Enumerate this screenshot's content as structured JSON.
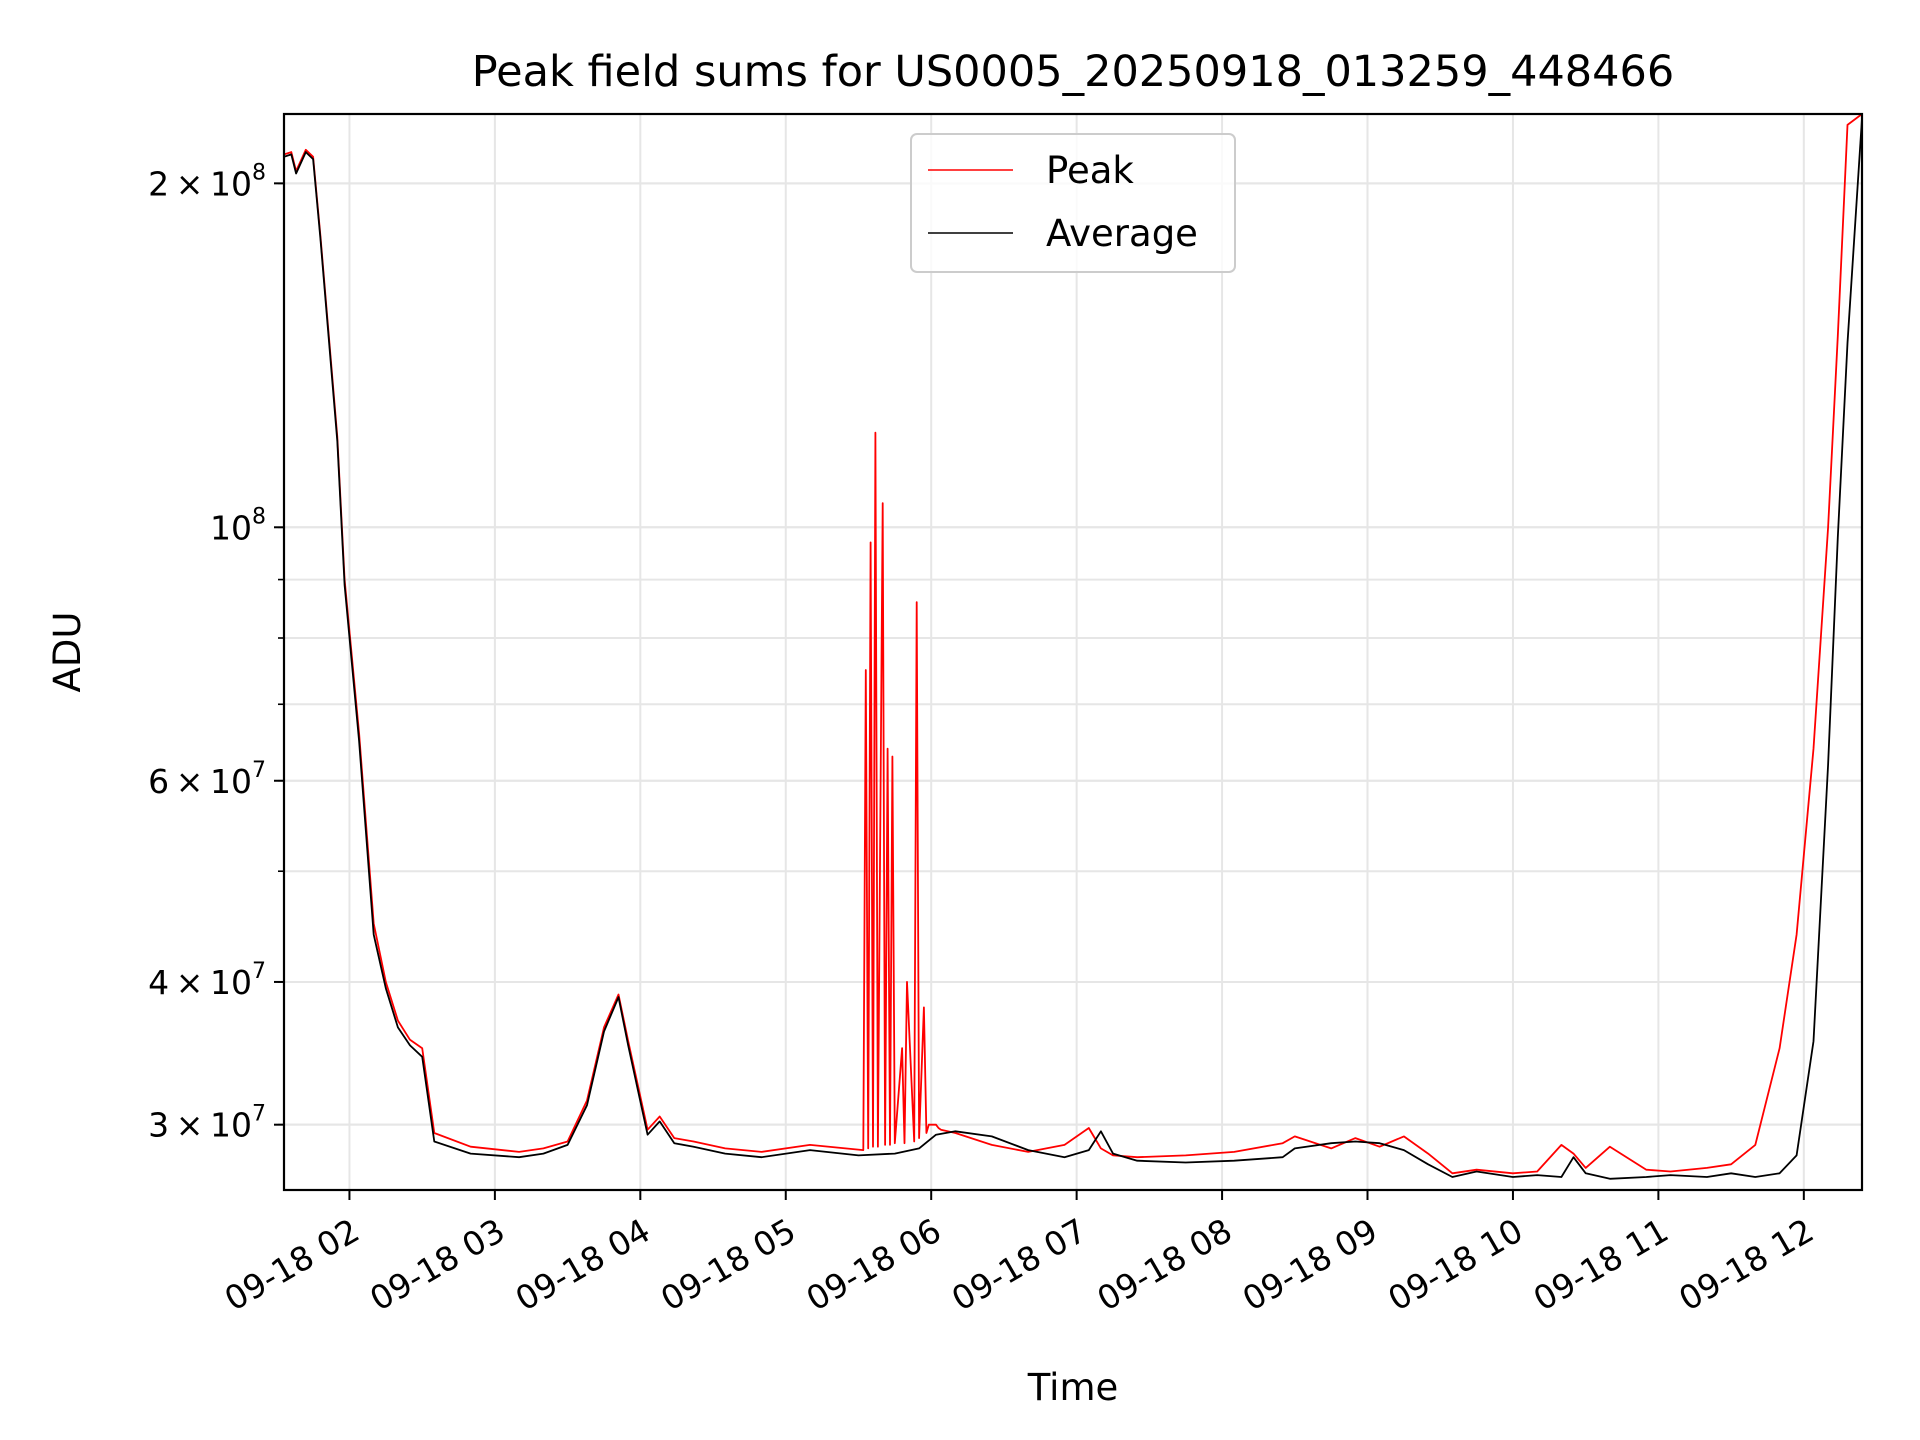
{
  "chart_data": {
    "type": "line",
    "title": "Peak field sums for US0005_20250918_013259_448466",
    "xlabel": "Time",
    "ylabel": "ADU",
    "yscale": "log",
    "ylim": [
      26300000,
      230000000
    ],
    "xlim": [
      "2025-09-18T01:33",
      "2025-09-18T12:24"
    ],
    "grid": true,
    "legend_position": "upper center",
    "x_ticks": [
      "2025-09-18T02:00",
      "2025-09-18T03:00",
      "2025-09-18T04:00",
      "2025-09-18T05:00",
      "2025-09-18T06:00",
      "2025-09-18T07:00",
      "2025-09-18T08:00",
      "2025-09-18T09:00",
      "2025-09-18T10:00",
      "2025-09-18T11:00",
      "2025-09-18T12:00"
    ],
    "x_tick_labels": [
      "09-18 02",
      "09-18 03",
      "09-18 04",
      "09-18 05",
      "09-18 06",
      "09-18 07",
      "09-18 08",
      "09-18 09",
      "09-18 10",
      "09-18 11",
      "09-18 12"
    ],
    "y_ticks": [
      {
        "value": 30000000,
        "mant": "3",
        "exp": "7"
      },
      {
        "value": 40000000,
        "mant": "4",
        "exp": "7"
      },
      {
        "value": 60000000,
        "mant": "6",
        "exp": "7"
      },
      {
        "value": 100000000,
        "mant": "",
        "exp": "8"
      },
      {
        "value": 200000000,
        "mant": "2",
        "exp": "8"
      }
    ],
    "series": [
      {
        "name": "Peak",
        "color": "#ff0000",
        "x": [
          "2025-09-18T01:33",
          "2025-09-18T01:36",
          "2025-09-18T01:38",
          "2025-09-18T01:42",
          "2025-09-18T01:45",
          "2025-09-18T01:48",
          "2025-09-18T01:55",
          "2025-09-18T01:58",
          "2025-09-18T02:04",
          "2025-09-18T02:06",
          "2025-09-18T02:10",
          "2025-09-18T02:15",
          "2025-09-18T02:20",
          "2025-09-18T02:25",
          "2025-09-18T02:30",
          "2025-09-18T02:35",
          "2025-09-18T02:50",
          "2025-09-18T03:10",
          "2025-09-18T03:20",
          "2025-09-18T03:30",
          "2025-09-18T03:38",
          "2025-09-18T03:45",
          "2025-09-18T03:51",
          "2025-09-18T03:55",
          "2025-09-18T04:03",
          "2025-09-18T04:08",
          "2025-09-18T04:14",
          "2025-09-18T04:22",
          "2025-09-18T04:35",
          "2025-09-18T04:50",
          "2025-09-18T05:10",
          "2025-09-18T05:32",
          "2025-09-18T05:33",
          "2025-09-18T05:34",
          "2025-09-18T05:35",
          "2025-09-18T05:36",
          "2025-09-18T05:37",
          "2025-09-18T05:38",
          "2025-09-18T05:40",
          "2025-09-18T05:41",
          "2025-09-18T05:42",
          "2025-09-18T05:43",
          "2025-09-18T05:44",
          "2025-09-18T05:45",
          "2025-09-18T05:48",
          "2025-09-18T05:49",
          "2025-09-18T05:50",
          "2025-09-18T05:53",
          "2025-09-18T05:54",
          "2025-09-18T05:55",
          "2025-09-18T05:57",
          "2025-09-18T05:58",
          "2025-09-18T05:59",
          "2025-09-18T06:02",
          "2025-09-18T06:03",
          "2025-09-18T06:04",
          "2025-09-18T06:10",
          "2025-09-18T06:25",
          "2025-09-18T06:40",
          "2025-09-18T06:55",
          "2025-09-18T07:05",
          "2025-09-18T07:10",
          "2025-09-18T07:15",
          "2025-09-18T07:25",
          "2025-09-18T07:45",
          "2025-09-18T08:05",
          "2025-09-18T08:25",
          "2025-09-18T08:30",
          "2025-09-18T08:45",
          "2025-09-18T08:55",
          "2025-09-18T09:05",
          "2025-09-18T09:15",
          "2025-09-18T09:25",
          "2025-09-18T09:35",
          "2025-09-18T09:45",
          "2025-09-18T10:00",
          "2025-09-18T10:10",
          "2025-09-18T10:20",
          "2025-09-18T10:25",
          "2025-09-18T10:30",
          "2025-09-18T10:40",
          "2025-09-18T10:55",
          "2025-09-18T11:05",
          "2025-09-18T11:20",
          "2025-09-18T11:30",
          "2025-09-18T11:40",
          "2025-09-18T11:50",
          "2025-09-18T11:57",
          "2025-09-18T12:04",
          "2025-09-18T12:10",
          "2025-09-18T12:14",
          "2025-09-18T12:18",
          "2025-09-18T12:24"
        ],
        "y": [
          212000000,
          213000000,
          205000000,
          214000000,
          211000000,
          180000000,
          120000000,
          90000000,
          66000000,
          58000000,
          45000000,
          40000000,
          37000000,
          35600000,
          35000000,
          29500000,
          28700000,
          28400000,
          28600000,
          29000000,
          31500000,
          36500000,
          39000000,
          35500000,
          29700000,
          30500000,
          29200000,
          29000000,
          28600000,
          28400000,
          28800000,
          28500000,
          75000000,
          28600000,
          97000000,
          28700000,
          121000000,
          28700000,
          105000000,
          28800000,
          64000000,
          28800000,
          63000000,
          28900000,
          35000000,
          28900000,
          40000000,
          29000000,
          86000000,
          29200000,
          38000000,
          29500000,
          30000000,
          30000000,
          29800000,
          29700000,
          29500000,
          28800000,
          28400000,
          28800000,
          29800000,
          28600000,
          28200000,
          28100000,
          28200000,
          28400000,
          28900000,
          29300000,
          28600000,
          29200000,
          28700000,
          29300000,
          28300000,
          27200000,
          27400000,
          27200000,
          27300000,
          28800000,
          28300000,
          27500000,
          28700000,
          27400000,
          27300000,
          27500000,
          27700000,
          28800000,
          35000000,
          44000000,
          64000000,
          100000000,
          147000000,
          225000000,
          230000000
        ]
      },
      {
        "name": "Average",
        "color": "#000000",
        "x": [
          "2025-09-18T01:33",
          "2025-09-18T01:36",
          "2025-09-18T01:38",
          "2025-09-18T01:42",
          "2025-09-18T01:45",
          "2025-09-18T01:48",
          "2025-09-18T01:55",
          "2025-09-18T01:58",
          "2025-09-18T02:04",
          "2025-09-18T02:06",
          "2025-09-18T02:10",
          "2025-09-18T02:15",
          "2025-09-18T02:20",
          "2025-09-18T02:25",
          "2025-09-18T02:30",
          "2025-09-18T02:35",
          "2025-09-18T02:50",
          "2025-09-18T03:10",
          "2025-09-18T03:20",
          "2025-09-18T03:30",
          "2025-09-18T03:38",
          "2025-09-18T03:45",
          "2025-09-18T03:51",
          "2025-09-18T03:55",
          "2025-09-18T04:03",
          "2025-09-18T04:08",
          "2025-09-18T04:14",
          "2025-09-18T04:22",
          "2025-09-18T04:35",
          "2025-09-18T04:50",
          "2025-09-18T05:10",
          "2025-09-18T05:30",
          "2025-09-18T05:45",
          "2025-09-18T05:55",
          "2025-09-18T06:02",
          "2025-09-18T06:10",
          "2025-09-18T06:25",
          "2025-09-18T06:40",
          "2025-09-18T06:55",
          "2025-09-18T07:05",
          "2025-09-18T07:10",
          "2025-09-18T07:15",
          "2025-09-18T07:25",
          "2025-09-18T07:45",
          "2025-09-18T08:05",
          "2025-09-18T08:25",
          "2025-09-18T08:30",
          "2025-09-18T08:45",
          "2025-09-18T08:55",
          "2025-09-18T09:05",
          "2025-09-18T09:15",
          "2025-09-18T09:25",
          "2025-09-18T09:35",
          "2025-09-18T09:45",
          "2025-09-18T10:00",
          "2025-09-18T10:10",
          "2025-09-18T10:20",
          "2025-09-18T10:25",
          "2025-09-18T10:30",
          "2025-09-18T10:40",
          "2025-09-18T10:55",
          "2025-09-18T11:05",
          "2025-09-18T11:20",
          "2025-09-18T11:30",
          "2025-09-18T11:40",
          "2025-09-18T11:50",
          "2025-09-18T11:57",
          "2025-09-18T12:04",
          "2025-09-18T12:10",
          "2025-09-18T12:14",
          "2025-09-18T12:18",
          "2025-09-18T12:24"
        ],
        "y": [
          211000000,
          212000000,
          204000000,
          213000000,
          210000000,
          179000000,
          119000000,
          89000000,
          65000000,
          57000000,
          44000000,
          39500000,
          36500000,
          35200000,
          34400000,
          29000000,
          28300000,
          28100000,
          28300000,
          28800000,
          31200000,
          36200000,
          38800000,
          35200000,
          29400000,
          30200000,
          28900000,
          28700000,
          28300000,
          28100000,
          28500000,
          28200000,
          28300000,
          28600000,
          29400000,
          29600000,
          29300000,
          28500000,
          28100000,
          28500000,
          29600000,
          28300000,
          27900000,
          27800000,
          27900000,
          28100000,
          28600000,
          28900000,
          29000000,
          28900000,
          28500000,
          27700000,
          27000000,
          27300000,
          27000000,
          27100000,
          27000000,
          28100000,
          27200000,
          26900000,
          27000000,
          27100000,
          27000000,
          27200000,
          27000000,
          27200000,
          28200000,
          35500000,
          62000000,
          98000000,
          145000000,
          228000000
        ]
      }
    ]
  }
}
